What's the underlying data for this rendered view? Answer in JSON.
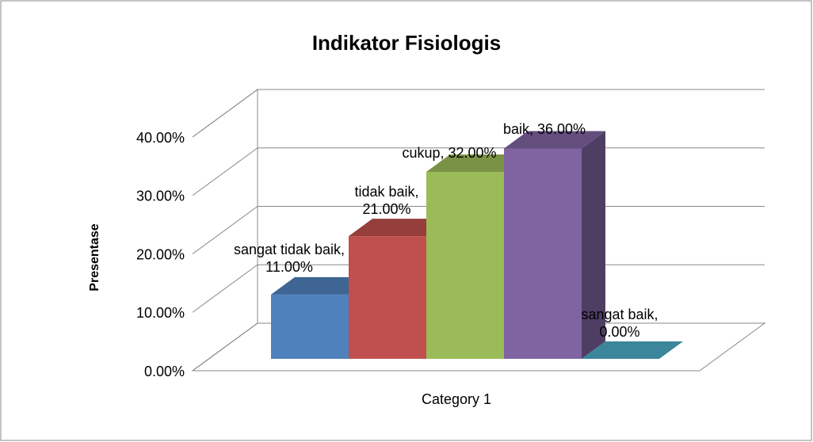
{
  "chart_data": {
    "type": "bar3d",
    "title": "Indikator Fisiologis",
    "y_label": "Presentase",
    "categories": [
      "Category 1"
    ],
    "series": [
      {
        "name": "sangat tidak baik",
        "color": "#4f81bd",
        "values": [
          11
        ],
        "value_labels": [
          "sangat tidak baik, 11.00%"
        ]
      },
      {
        "name": "tidak baik",
        "color": "#c0504d",
        "values": [
          21
        ],
        "value_labels": [
          "tidak baik, 21.00%"
        ]
      },
      {
        "name": "cukup",
        "color": "#9bbb59",
        "values": [
          32
        ],
        "value_labels": [
          "cukup, 32.00%"
        ]
      },
      {
        "name": "baik",
        "color": "#8064a2",
        "values": [
          36
        ],
        "value_labels": [
          "baik, 36.00%"
        ]
      },
      {
        "name": "sangat baik",
        "color": "#4bacc6",
        "values": [
          0
        ],
        "value_labels": [
          "sangat baik, 0.00%"
        ]
      }
    ],
    "ylim": [
      0,
      40
    ],
    "yticks": [
      {
        "value": 0,
        "label": "0.00%"
      },
      {
        "value": 10,
        "label": "10.00%"
      },
      {
        "value": 20,
        "label": "20.00%"
      },
      {
        "value": 30,
        "label": "30.00%"
      },
      {
        "value": 40,
        "label": "40.00%"
      }
    ],
    "grid": true
  }
}
